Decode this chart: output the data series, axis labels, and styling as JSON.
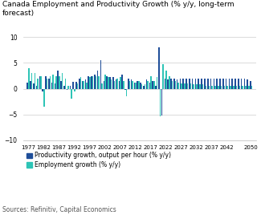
{
  "title": "Canada Employment and Productivity Growth (% y/y, long-term\nforecast)",
  "source": "Sources: Refinitiv, Capital Economics",
  "ylim": [
    -10,
    10
  ],
  "yticks": [
    -10,
    -5,
    0,
    5,
    10
  ],
  "productivity_color": "#1f4e99",
  "employment_color": "#2ec4b6",
  "legend_prod": "Productivity growth, output per hour (% y/y)",
  "legend_emp": "Employment growth (% y/y)",
  "years": [
    1977,
    1978,
    1979,
    1980,
    1981,
    1982,
    1983,
    1984,
    1985,
    1986,
    1987,
    1988,
    1989,
    1990,
    1991,
    1992,
    1993,
    1994,
    1995,
    1996,
    1997,
    1998,
    1999,
    2000,
    2001,
    2002,
    2003,
    2004,
    2005,
    2006,
    2007,
    2008,
    2009,
    2010,
    2011,
    2012,
    2013,
    2014,
    2015,
    2016,
    2017,
    2018,
    2019,
    2020,
    2021,
    2022,
    2023,
    2024,
    2025,
    2026,
    2027,
    2028,
    2029,
    2030,
    2031,
    2032,
    2033,
    2034,
    2035,
    2036,
    2037,
    2038,
    2039,
    2040,
    2041,
    2042,
    2043,
    2044,
    2045,
    2046,
    2047,
    2048,
    2049,
    2050
  ],
  "productivity": [
    1.2,
    1.5,
    1.0,
    0.5,
    2.5,
    -0.5,
    2.5,
    2.0,
    1.2,
    1.0,
    3.5,
    1.5,
    0.5,
    -0.3,
    0.5,
    1.3,
    1.3,
    2.0,
    1.5,
    1.8,
    2.5,
    2.5,
    2.8,
    3.5,
    5.5,
    1.5,
    2.5,
    2.2,
    2.2,
    1.8,
    1.5,
    2.8,
    -0.2,
    2.0,
    1.8,
    1.2,
    1.5,
    1.2,
    0.5,
    1.8,
    1.2,
    1.5,
    0.5,
    8.0,
    -5.2,
    2.0,
    1.8,
    2.0,
    2.0,
    1.8,
    2.0,
    2.0,
    2.0,
    2.0,
    2.0,
    2.0,
    2.0,
    2.0,
    2.0,
    2.0,
    2.0,
    2.0,
    2.0,
    2.0,
    2.0,
    2.0,
    2.0,
    2.0,
    2.0,
    2.0,
    2.0,
    2.0,
    1.8,
    1.5
  ],
  "employment": [
    4.0,
    3.0,
    3.0,
    2.0,
    2.5,
    -3.5,
    2.0,
    2.5,
    2.8,
    2.5,
    2.5,
    3.0,
    2.0,
    0.5,
    -2.0,
    -0.5,
    1.0,
    2.2,
    1.5,
    1.2,
    2.2,
    2.5,
    2.5,
    2.5,
    1.0,
    2.8,
    2.2,
    1.8,
    1.5,
    2.0,
    2.2,
    1.5,
    -1.5,
    1.5,
    1.5,
    1.2,
    1.5,
    0.8,
    0.8,
    1.5,
    2.5,
    1.5,
    2.2,
    -5.3,
    4.8,
    3.5,
    2.5,
    1.5,
    1.5,
    1.2,
    1.0,
    1.0,
    1.0,
    1.0,
    0.8,
    0.8,
    0.8,
    0.8,
    0.6,
    0.6,
    0.6,
    0.6,
    0.5,
    0.5,
    0.5,
    0.5,
    0.5,
    0.5,
    0.5,
    0.5,
    0.5,
    0.5,
    0.5,
    0.5
  ],
  "xtick_years": [
    1977,
    1982,
    1987,
    1992,
    1997,
    2002,
    2007,
    2012,
    2017,
    2022,
    2027,
    2032,
    2037,
    2042,
    2050
  ],
  "bar_width": 0.42
}
